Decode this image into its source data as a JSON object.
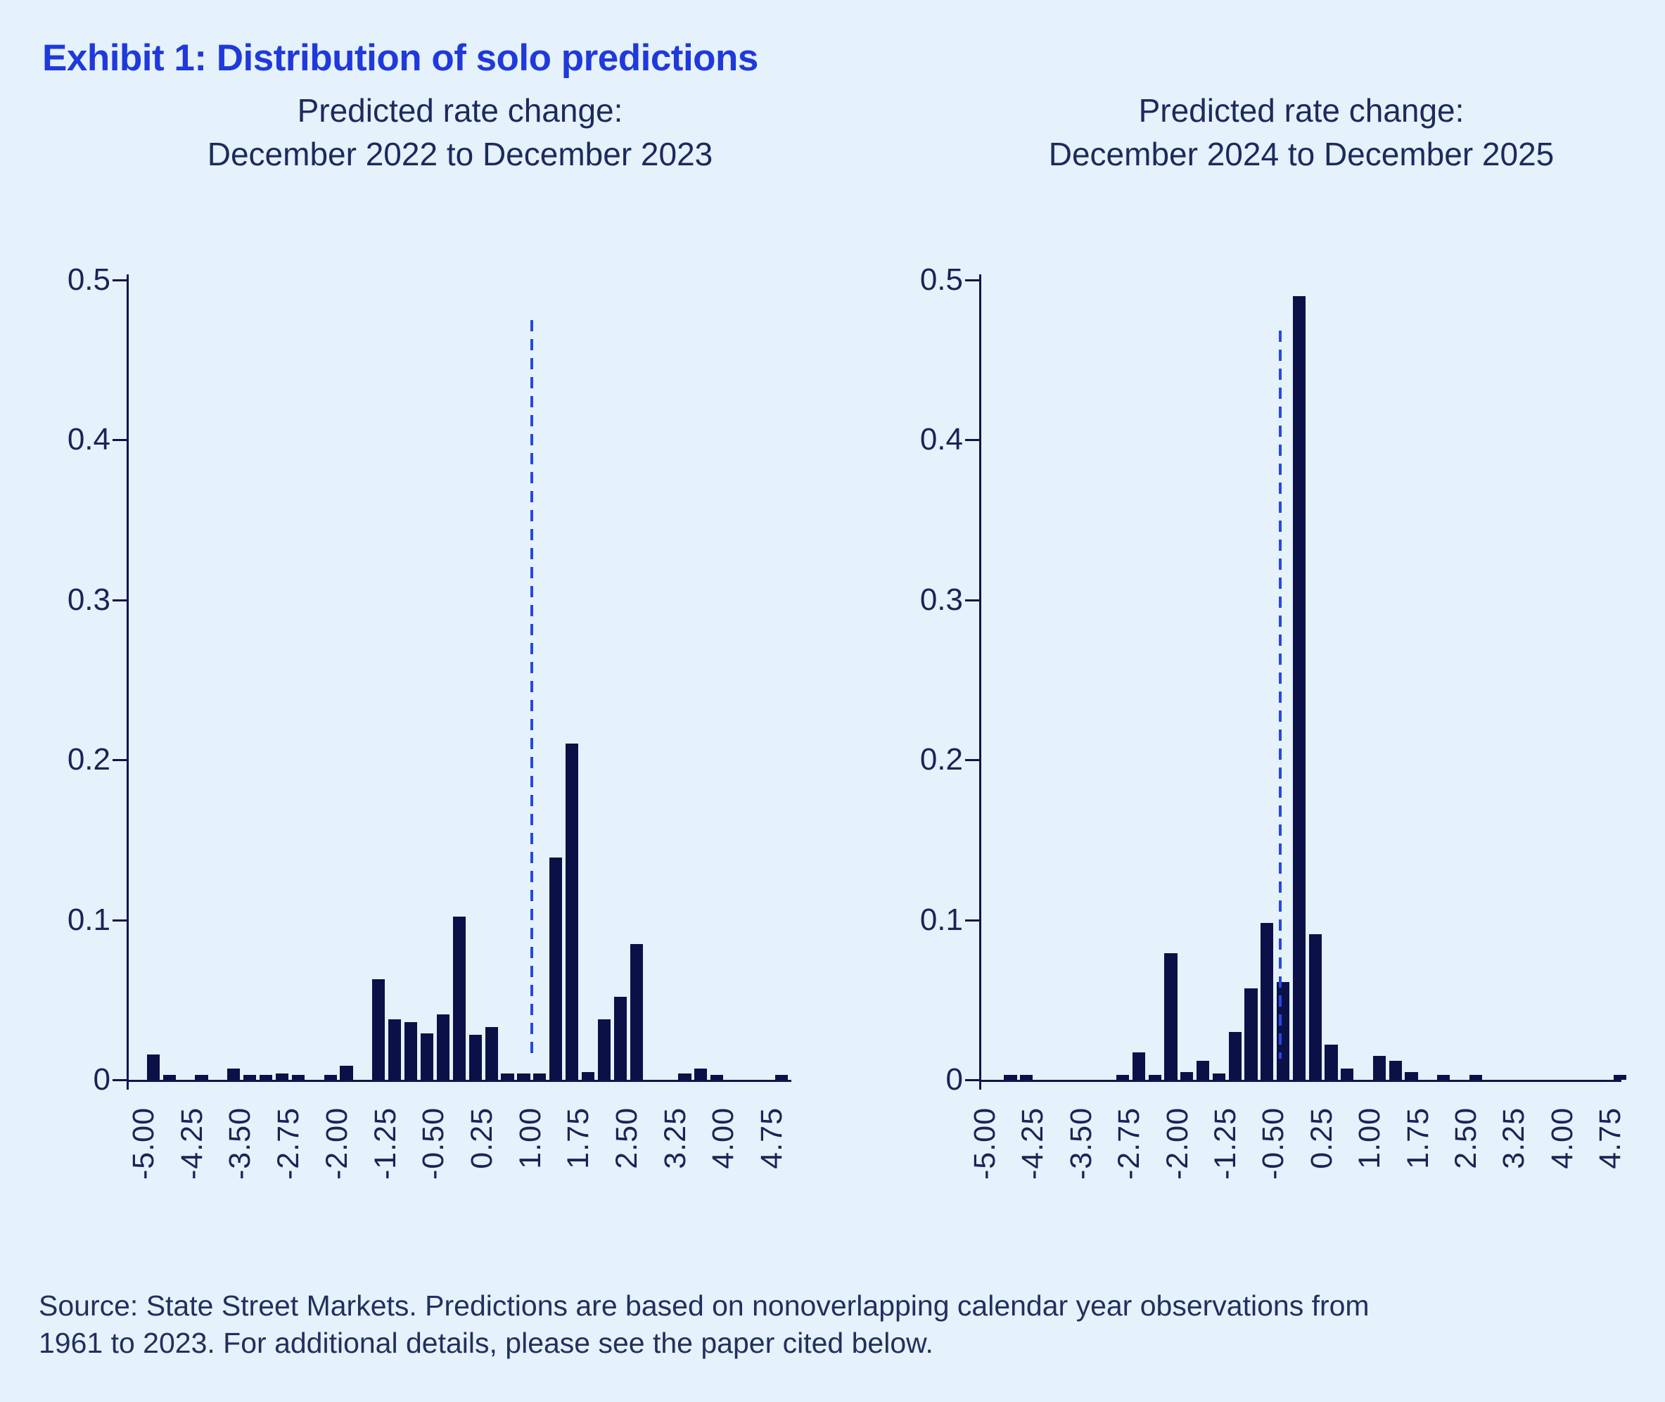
{
  "page": {
    "background_color": "#E5F1FB"
  },
  "title": {
    "text": "Exhibit 1: Distribution of solo predictions",
    "color": "#1F39DA"
  },
  "source_note": {
    "line1": "Source: State Street Markets. Predictions are based on nonoverlapping calendar year observations from",
    "line2": "1961 to 2023. For additional details, please see the paper cited below."
  },
  "chart_data": [
    {
      "type": "bar",
      "subtype": "histogram",
      "title_line1": "Predicted rate change:",
      "title_line2": "December 2022 to December 2023",
      "xlabel": "",
      "ylabel": "",
      "ylim": [
        0,
        0.5
      ],
      "grid": "off",
      "legend": "none",
      "bin_width": 0.25,
      "bin_starts": [
        -5.0,
        -4.75,
        -4.5,
        -4.25,
        -4.0,
        -3.75,
        -3.5,
        -3.25,
        -3.0,
        -2.75,
        -2.5,
        -2.25,
        -2.0,
        -1.75,
        -1.5,
        -1.25,
        -1.0,
        -0.75,
        -0.5,
        -0.25,
        0.0,
        0.25,
        0.5,
        0.75,
        1.0,
        1.25,
        1.5,
        1.75,
        2.0,
        2.25,
        2.5,
        2.75,
        3.0,
        3.25,
        3.5,
        3.75,
        4.0,
        4.25,
        4.5,
        4.75
      ],
      "frequencies": [
        0.016,
        0.003,
        0,
        0.003,
        0,
        0.007,
        0.003,
        0.003,
        0.004,
        0.003,
        0,
        0.003,
        0.009,
        0,
        0.063,
        0.038,
        0.036,
        0.029,
        0.041,
        0.102,
        0.028,
        0.033,
        0.004,
        0.004,
        0.004,
        0.139,
        0.21,
        0.005,
        0.038,
        0.052,
        0.085,
        0,
        0,
        0.004,
        0.007,
        0.003,
        0,
        0,
        0,
        0.003
      ],
      "x_tick_labels": [
        "-5.00",
        "-4.25",
        "-3.50",
        "-2.75",
        "-2.00",
        "-1.25",
        "-0.50",
        "0.25",
        "1.00",
        "1.75",
        "2.50",
        "3.25",
        "4.00",
        "4.75"
      ],
      "x_tick_every_n_bins": 3,
      "y_tick_labels": [
        "0",
        "0.1",
        "0.2",
        "0.3",
        "0.4",
        "0.5"
      ],
      "dashed_line_x": 1.0,
      "bar_color": "#0B1147",
      "dashed_line_color": "#2747E3"
    },
    {
      "type": "bar",
      "subtype": "histogram",
      "title_line1": "Predicted rate change:",
      "title_line2": "December 2024 to December 2025",
      "xlabel": "",
      "ylabel": "",
      "ylim": [
        0,
        0.5
      ],
      "grid": "off",
      "legend": "none",
      "bin_width": 0.25,
      "bin_starts": [
        -5.0,
        -4.75,
        -4.5,
        -4.25,
        -4.0,
        -3.75,
        -3.5,
        -3.25,
        -3.0,
        -2.75,
        -2.5,
        -2.25,
        -2.0,
        -1.75,
        -1.5,
        -1.25,
        -1.0,
        -0.75,
        -0.5,
        -0.25,
        0.0,
        0.25,
        0.5,
        0.75,
        1.0,
        1.25,
        1.5,
        1.75,
        2.0,
        2.25,
        2.5,
        2.75,
        3.0,
        3.25,
        3.5,
        3.75,
        4.0,
        4.25,
        4.5,
        4.75
      ],
      "frequencies": [
        0,
        0.003,
        0.003,
        0,
        0,
        0,
        0,
        0,
        0.003,
        0.017,
        0.003,
        0.079,
        0.005,
        0.012,
        0.004,
        0.03,
        0.057,
        0.098,
        0.061,
        0.49,
        0.091,
        0.022,
        0.007,
        0,
        0.015,
        0.012,
        0.005,
        0,
        0.003,
        0,
        0.003,
        0,
        0,
        0,
        0,
        0,
        0,
        0,
        0,
        0.003
      ],
      "x_tick_labels": [
        "-5.00",
        "-4.25",
        "-3.50",
        "-2.75",
        "-2.00",
        "-1.25",
        "-0.50",
        "0.25",
        "1.00",
        "1.75",
        "2.50",
        "3.25",
        "4.00",
        "4.75"
      ],
      "x_tick_every_n_bins": 3,
      "y_tick_labels": [
        "0",
        "0.1",
        "0.2",
        "0.3",
        "0.4",
        "0.5"
      ],
      "dashed_line_x": -0.42,
      "bar_color": "#0B1147",
      "dashed_line_color": "#2747E3"
    }
  ]
}
